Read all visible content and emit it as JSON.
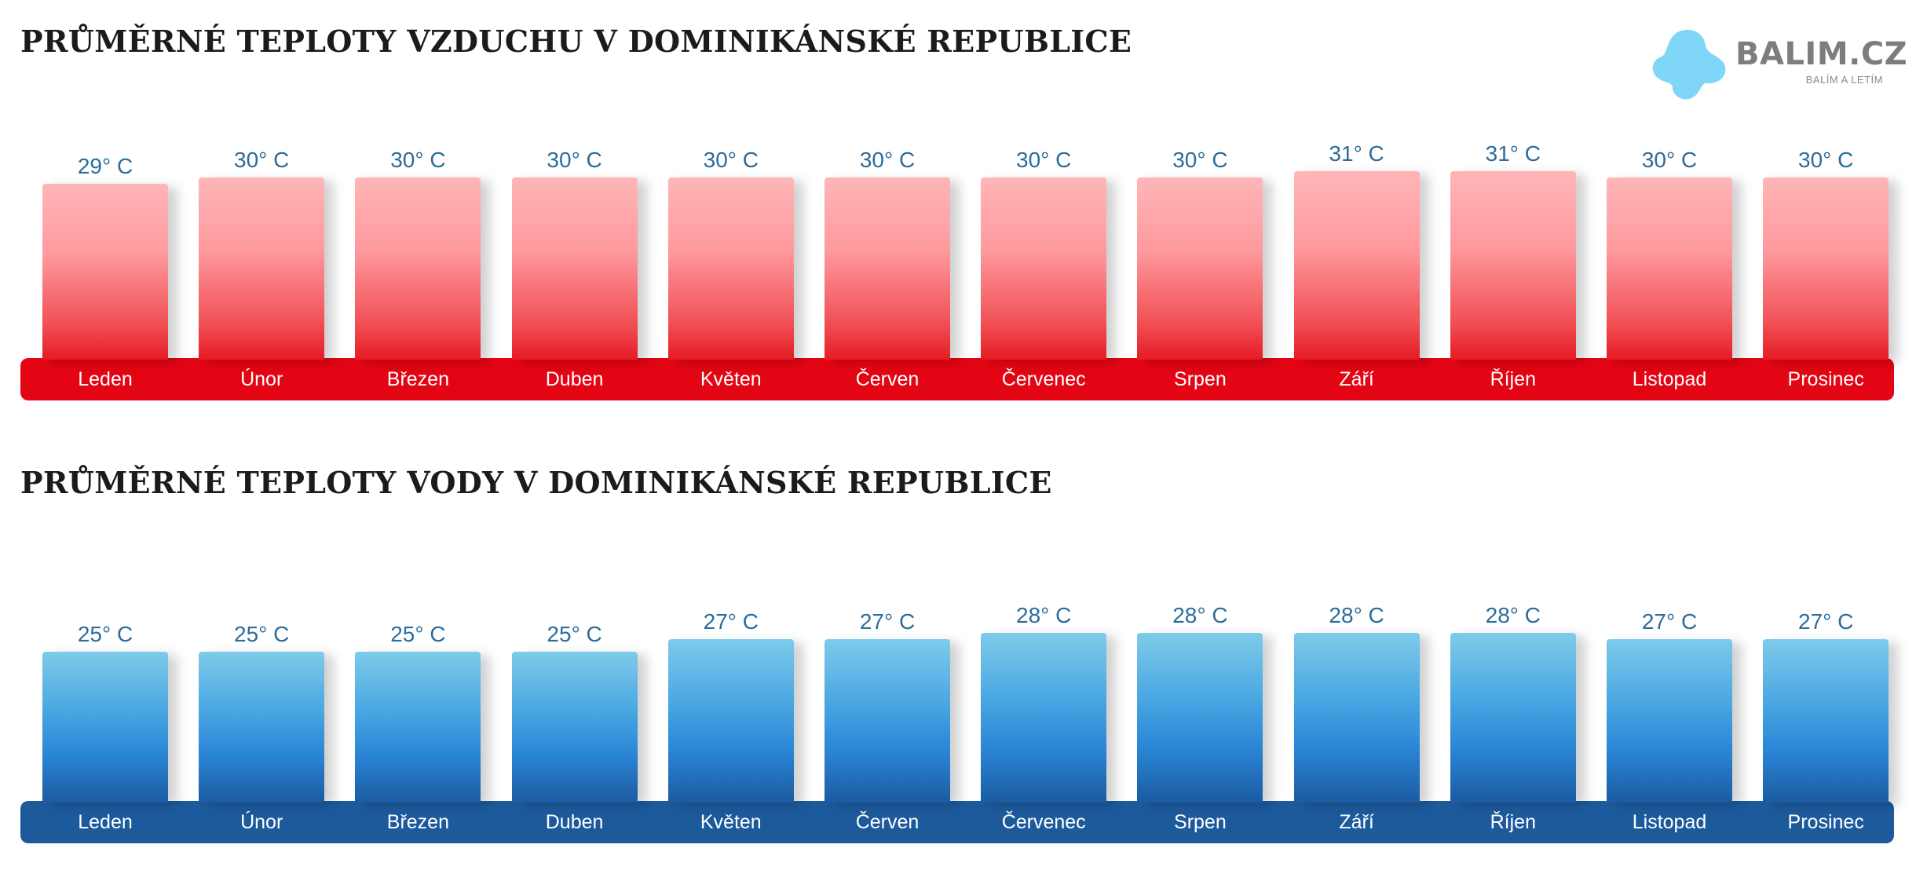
{
  "logo": {
    "brand": "BALIM.CZ",
    "tagline": "BALÍM A LETÍM",
    "blob_color": "#7fd6f7"
  },
  "chart_data": [
    {
      "type": "bar",
      "title": "PRŮMĚRNÉ TEPLOTY VZDUCHU V DOMINIKÁNSKÉ REPUBLICE",
      "categories": [
        "Leden",
        "Únor",
        "Březen",
        "Duben",
        "Květen",
        "Červen",
        "Červenec",
        "Srpen",
        "Září",
        "Říjen",
        "Listopad",
        "Prosinec"
      ],
      "values": [
        29,
        30,
        30,
        30,
        30,
        30,
        30,
        30,
        31,
        31,
        30,
        30
      ],
      "labels": [
        "29° C",
        "30° C",
        "30° C",
        "30° C",
        "30° C",
        "30° C",
        "30° C",
        "30° C",
        "31° C",
        "31° C",
        "30° C",
        "30° C"
      ],
      "unit": "° C",
      "colors": {
        "band": "#e30513",
        "bar_top": "#ffb6b8",
        "bar_bottom": "#e61b24",
        "value_text": "#2c6c9a"
      }
    },
    {
      "type": "bar",
      "title": "PRŮMĚRNÉ TEPLOTY VODY V DOMINIKÁNSKÉ REPUBLICE",
      "categories": [
        "Leden",
        "Únor",
        "Březen",
        "Duben",
        "Květen",
        "Červen",
        "Červenec",
        "Srpen",
        "Září",
        "Říjen",
        "Listopad",
        "Prosinec"
      ],
      "values": [
        25,
        25,
        25,
        25,
        27,
        27,
        28,
        28,
        28,
        28,
        27,
        27
      ],
      "labels": [
        "25° C",
        "25° C",
        "25° C",
        "25° C",
        "27° C",
        "27° C",
        "28° C",
        "28° C",
        "28° C",
        "28° C",
        "27° C",
        "27° C"
      ],
      "unit": "° C",
      "colors": {
        "band": "#1d5a9c",
        "bar_top": "#7ecbea",
        "bar_bottom": "#1b5ba1",
        "value_text": "#2c6c9a"
      }
    }
  ]
}
